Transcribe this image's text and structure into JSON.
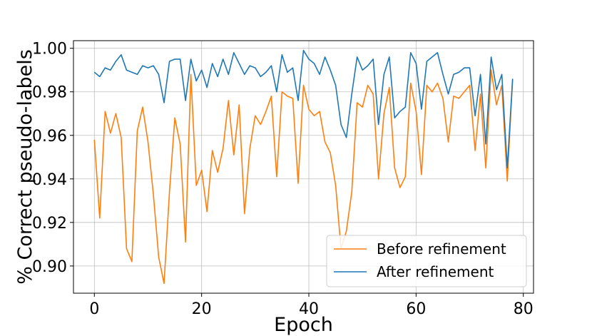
{
  "chart_data": {
    "type": "line",
    "xlabel": "Epoch",
    "ylabel": "% Correct pseudo-labels",
    "xlim": [
      -3.9,
      81.9
    ],
    "ylim": [
      0.8875,
      1.0035
    ],
    "xticks": [
      0,
      20,
      40,
      60,
      80
    ],
    "yticks": [
      0.9,
      0.92,
      0.94,
      0.96,
      0.98,
      1.0
    ],
    "xtick_labels": [
      "0",
      "20",
      "40",
      "60",
      "80"
    ],
    "ytick_labels": [
      "0.90",
      "0.92",
      "0.94",
      "0.96",
      "0.98",
      "1.00"
    ],
    "grid": true,
    "legend_position": "lower-right",
    "x": [
      0,
      1,
      2,
      3,
      4,
      5,
      6,
      7,
      8,
      9,
      10,
      11,
      12,
      13,
      14,
      15,
      16,
      17,
      18,
      19,
      20,
      21,
      22,
      23,
      24,
      25,
      26,
      27,
      28,
      29,
      30,
      31,
      32,
      33,
      34,
      35,
      36,
      37,
      38,
      39,
      40,
      41,
      42,
      43,
      44,
      45,
      46,
      47,
      48,
      49,
      50,
      51,
      52,
      53,
      54,
      55,
      56,
      57,
      58,
      59,
      60,
      61,
      62,
      63,
      64,
      65,
      66,
      67,
      68,
      69,
      70,
      71,
      72,
      73,
      74,
      75,
      76,
      77,
      78
    ],
    "series": [
      {
        "name": "Before refinement",
        "color": "#ff7f0e",
        "values": [
          0.958,
          0.922,
          0.971,
          0.961,
          0.97,
          0.959,
          0.908,
          0.902,
          0.962,
          0.973,
          0.957,
          0.933,
          0.904,
          0.892,
          0.934,
          0.968,
          0.956,
          0.911,
          0.988,
          0.937,
          0.944,
          0.925,
          0.953,
          0.943,
          0.954,
          0.976,
          0.951,
          0.974,
          0.924,
          0.954,
          0.969,
          0.965,
          0.971,
          0.978,
          0.941,
          0.98,
          0.978,
          0.977,
          0.938,
          0.983,
          0.972,
          0.969,
          0.971,
          0.957,
          0.952,
          0.937,
          0.908,
          0.916,
          0.934,
          0.975,
          0.973,
          0.983,
          0.979,
          0.94,
          0.97,
          0.982,
          0.945,
          0.936,
          0.941,
          0.984,
          0.971,
          0.942,
          0.983,
          0.98,
          0.984,
          0.977,
          0.957,
          0.978,
          0.977,
          0.98,
          0.983,
          0.953,
          0.979,
          0.945,
          0.99,
          0.974,
          0.983,
          0.939,
          0.986
        ]
      },
      {
        "name": "After refinement",
        "color": "#1f77b4",
        "values": [
          0.989,
          0.987,
          0.991,
          0.99,
          0.994,
          0.997,
          0.99,
          0.989,
          0.988,
          0.992,
          0.991,
          0.992,
          0.988,
          0.975,
          0.994,
          0.995,
          0.995,
          0.976,
          0.995,
          0.985,
          0.99,
          0.982,
          0.993,
          0.987,
          0.995,
          0.988,
          0.998,
          0.993,
          0.988,
          0.992,
          0.991,
          0.987,
          0.989,
          0.992,
          0.98,
          0.997,
          0.989,
          0.991,
          0.976,
          0.999,
          0.995,
          0.993,
          0.988,
          0.996,
          0.99,
          0.983,
          0.965,
          0.959,
          0.979,
          0.996,
          0.99,
          0.992,
          0.995,
          0.965,
          0.988,
          0.996,
          0.968,
          0.971,
          0.973,
          0.998,
          0.993,
          0.972,
          0.994,
          0.996,
          0.998,
          0.988,
          0.979,
          0.988,
          0.989,
          0.991,
          0.991,
          0.969,
          0.988,
          0.956,
          0.996,
          0.981,
          0.988,
          0.945,
          0.986
        ]
      }
    ]
  }
}
